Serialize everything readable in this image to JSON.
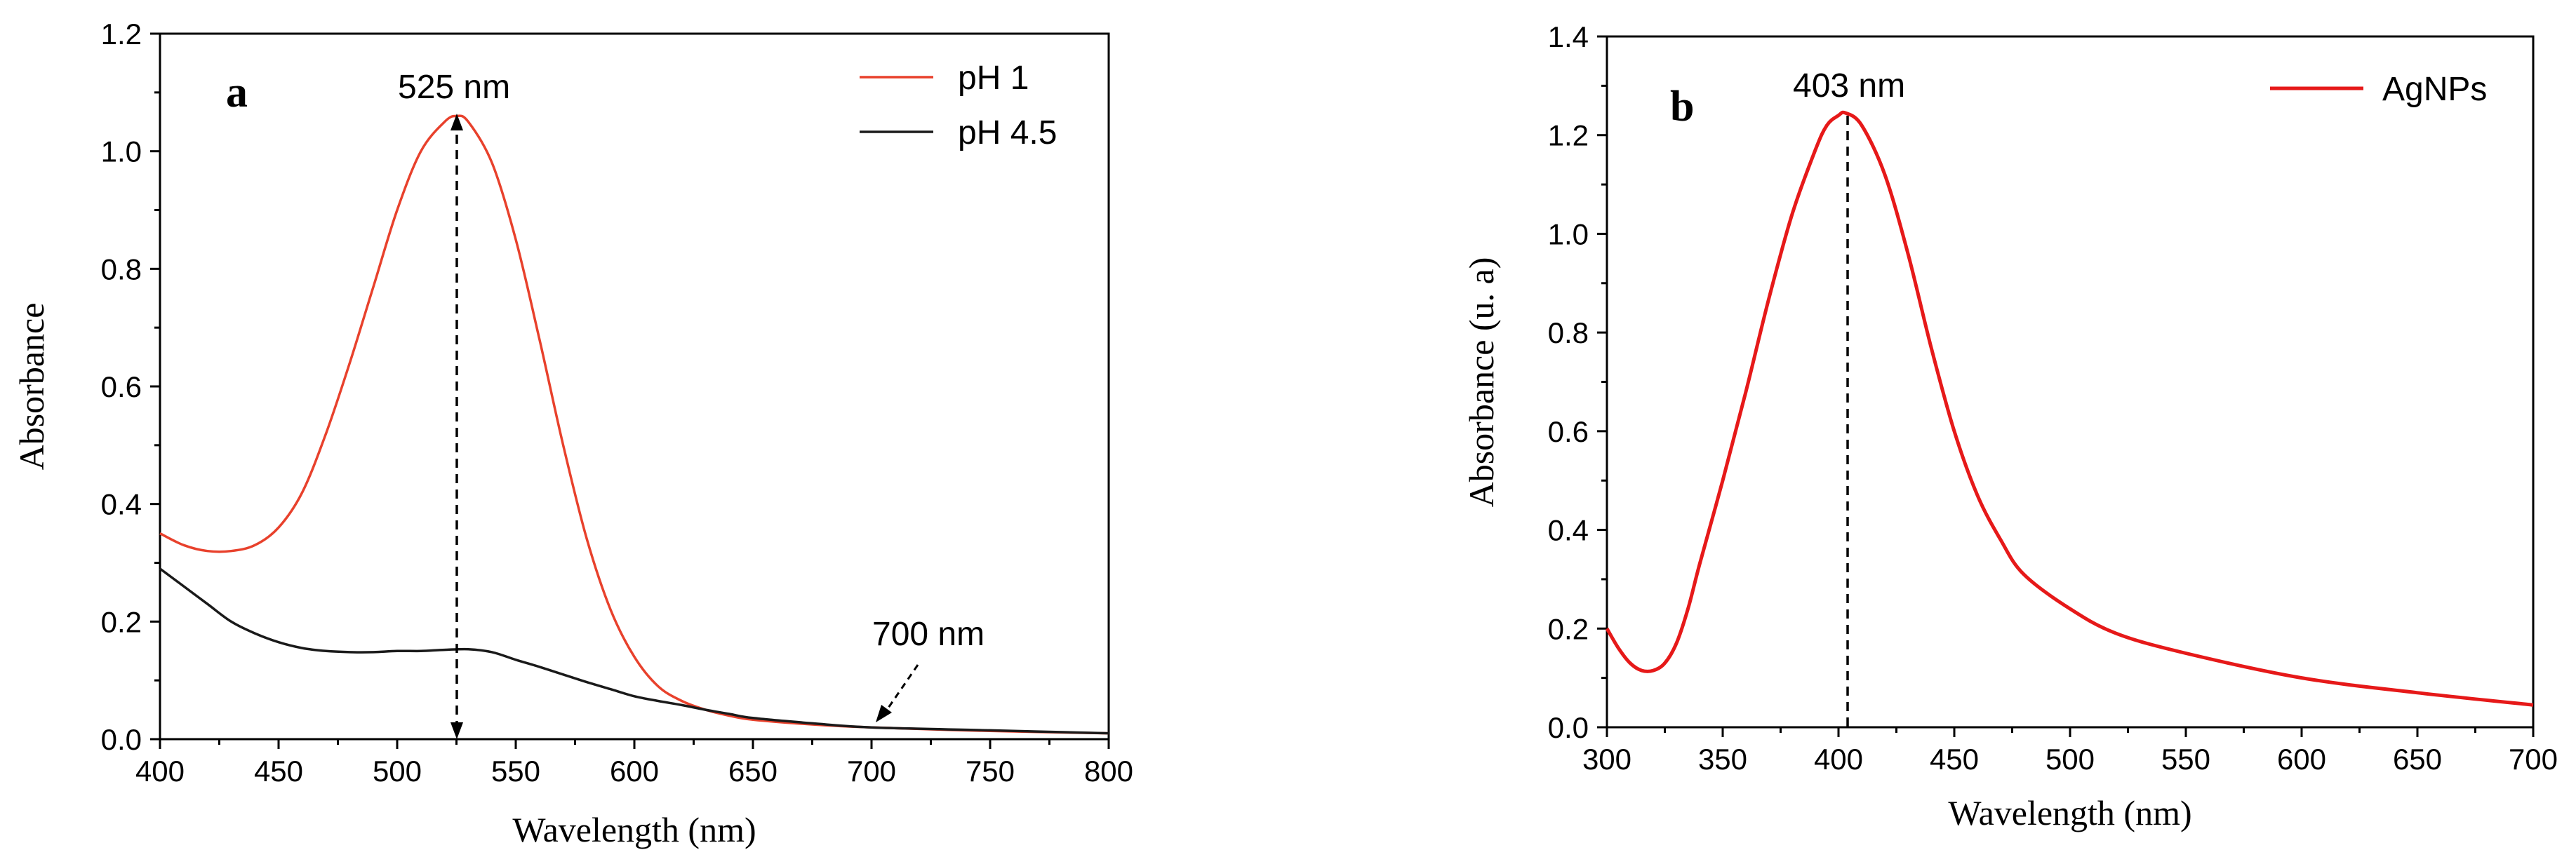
{
  "chart_data": [
    {
      "type": "line",
      "panel_label": "a",
      "xlabel": "Wavelength (nm)",
      "ylabel": "Absorbance",
      "xlim": [
        400,
        800
      ],
      "ylim": [
        0.0,
        1.2
      ],
      "x_ticks": [
        400,
        450,
        500,
        550,
        600,
        650,
        700,
        750,
        800
      ],
      "y_ticks": [
        "0.0",
        "0.2",
        "0.4",
        "0.6",
        "0.8",
        "1.0",
        "1.2"
      ],
      "legend_position": "top-right",
      "series": [
        {
          "name": "pH 1",
          "color": "#e8412c",
          "x": [
            400,
            410,
            420,
            430,
            440,
            450,
            460,
            470,
            480,
            490,
            500,
            510,
            520,
            525,
            530,
            540,
            550,
            560,
            570,
            580,
            590,
            600,
            610,
            620,
            630,
            640,
            650,
            675,
            700,
            750,
            800
          ],
          "y": [
            0.35,
            0.33,
            0.32,
            0.32,
            0.33,
            0.36,
            0.42,
            0.52,
            0.64,
            0.77,
            0.9,
            1.0,
            1.05,
            1.06,
            1.05,
            0.98,
            0.85,
            0.68,
            0.5,
            0.34,
            0.22,
            0.14,
            0.09,
            0.065,
            0.05,
            0.04,
            0.033,
            0.025,
            0.02,
            0.014,
            0.01
          ]
        },
        {
          "name": "pH 4.5",
          "color": "#1a1a1a",
          "x": [
            400,
            410,
            420,
            430,
            440,
            450,
            460,
            470,
            480,
            490,
            500,
            510,
            520,
            530,
            540,
            550,
            560,
            570,
            580,
            590,
            600,
            610,
            620,
            630,
            640,
            650,
            675,
            700,
            750,
            800
          ],
          "y": [
            0.29,
            0.26,
            0.23,
            0.2,
            0.18,
            0.165,
            0.155,
            0.15,
            0.148,
            0.148,
            0.15,
            0.15,
            0.152,
            0.153,
            0.148,
            0.135,
            0.123,
            0.11,
            0.097,
            0.085,
            0.073,
            0.065,
            0.058,
            0.05,
            0.043,
            0.036,
            0.027,
            0.02,
            0.015,
            0.01
          ]
        }
      ],
      "annotations": [
        {
          "text": "525 nm",
          "x": 525
        },
        {
          "text": "700 nm",
          "x": 700
        }
      ]
    },
    {
      "type": "line",
      "panel_label": "b",
      "xlabel": "Wavelength (nm)",
      "ylabel": "Absorbance (u. a)",
      "xlim": [
        300,
        700
      ],
      "ylim": [
        0.0,
        1.4
      ],
      "x_ticks": [
        300,
        350,
        400,
        450,
        500,
        550,
        600,
        650,
        700
      ],
      "y_ticks": [
        "0.0",
        "0.2",
        "0.4",
        "0.6",
        "0.8",
        "1.0",
        "1.2",
        "1.4"
      ],
      "legend_position": "top-right",
      "series": [
        {
          "name": "AgNPs",
          "color": "#e61919",
          "x": [
            300,
            305,
            310,
            315,
            320,
            325,
            330,
            335,
            340,
            350,
            360,
            370,
            380,
            390,
            395,
            400,
            403,
            410,
            420,
            430,
            440,
            450,
            460,
            470,
            480,
            500,
            520,
            550,
            600,
            650,
            700
          ],
          "y": [
            0.2,
            0.16,
            0.13,
            0.115,
            0.115,
            0.13,
            0.17,
            0.24,
            0.33,
            0.5,
            0.68,
            0.87,
            1.04,
            1.17,
            1.22,
            1.24,
            1.245,
            1.22,
            1.12,
            0.96,
            0.77,
            0.6,
            0.47,
            0.38,
            0.31,
            0.24,
            0.19,
            0.15,
            0.1,
            0.07,
            0.045
          ]
        }
      ],
      "annotations": [
        {
          "text": "403 nm",
          "x": 403
        }
      ]
    }
  ]
}
